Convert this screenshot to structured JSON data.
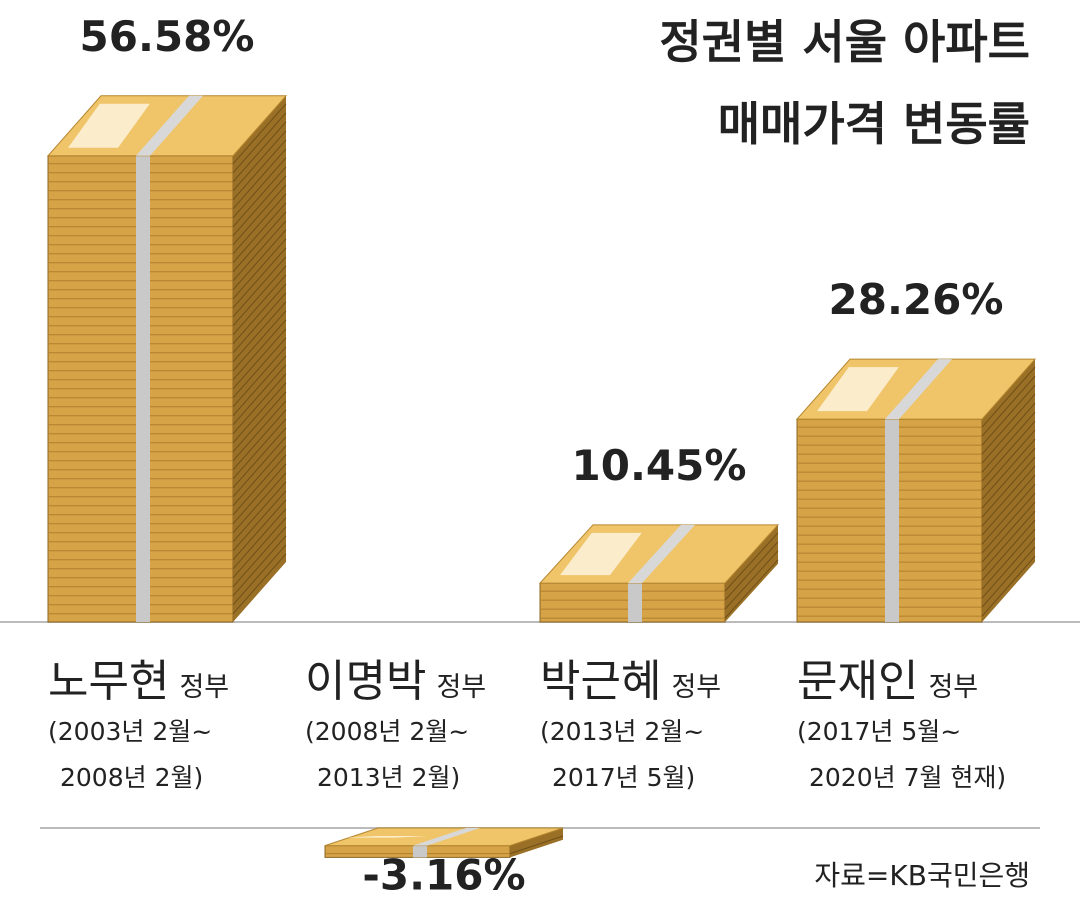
{
  "chart_data": {
    "type": "bar",
    "title": [
      "정권별 서울 아파트",
      "매매가격 변동률"
    ],
    "categories": [
      "노무현",
      "이명박",
      "박근혜",
      "문재인"
    ],
    "category_suffix": "정부",
    "periods": [
      [
        "(2003년 2월~",
        "2008년 2월)"
      ],
      [
        "(2008년 2월~",
        "2013년 2월)"
      ],
      [
        "(2013년 2월~",
        "2017년 5월)"
      ],
      [
        "(2017년 5월~",
        "2020년 7월 현재)"
      ]
    ],
    "values": [
      56.58,
      -3.16,
      10.45,
      28.26
    ],
    "value_labels": [
      "56.58%",
      "-3.16%",
      "10.45%",
      "28.26%"
    ],
    "color": "#d6a347",
    "source": "자료=KB국민은행"
  }
}
